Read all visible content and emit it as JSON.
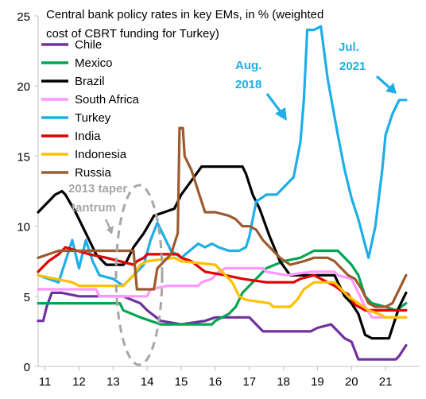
{
  "chart_data": {
    "type": "line",
    "title": "Central bank policy rates in key EMs, in % (weighted cost of CBRT funding for Turkey)",
    "title_lines": [
      "Central bank policy rates in key EMs, in % (weighted",
      "cost of CBRT funding for Turkey)"
    ],
    "x_ticks": [
      "11",
      "12",
      "13",
      "14",
      "15",
      "16",
      "17",
      "18",
      "19",
      "20",
      "21"
    ],
    "y_ticks": [
      "0",
      "5",
      "10",
      "15",
      "20",
      "25"
    ],
    "xlim": [
      2010.8,
      2022.0
    ],
    "ylim": [
      0,
      25
    ],
    "legend_position": "upper-left",
    "series": [
      {
        "name": "Chile",
        "color": "#7030a0",
        "points": [
          [
            2010.8,
            3.25
          ],
          [
            2010.95,
            3.25
          ],
          [
            2011.05,
            4.25
          ],
          [
            2011.2,
            5.25
          ],
          [
            2011.5,
            5.25
          ],
          [
            2012.0,
            5.0
          ],
          [
            2013.0,
            5.0
          ],
          [
            2013.3,
            5.0
          ],
          [
            2013.8,
            4.5
          ],
          [
            2014.0,
            4.0
          ],
          [
            2014.4,
            3.25
          ],
          [
            2015.0,
            3.0
          ],
          [
            2015.7,
            3.25
          ],
          [
            2016.0,
            3.5
          ],
          [
            2017.0,
            3.5
          ],
          [
            2017.2,
            3.0
          ],
          [
            2017.4,
            2.5
          ],
          [
            2018.8,
            2.5
          ],
          [
            2019.0,
            2.75
          ],
          [
            2019.4,
            3.0
          ],
          [
            2019.6,
            2.5
          ],
          [
            2019.8,
            2.0
          ],
          [
            2020.0,
            1.75
          ],
          [
            2020.2,
            0.5
          ],
          [
            2021.3,
            0.5
          ],
          [
            2021.4,
            0.75
          ],
          [
            2021.6,
            1.5
          ]
        ]
      },
      {
        "name": "Mexico",
        "color": "#00a651",
        "points": [
          [
            2010.8,
            4.5
          ],
          [
            2013.2,
            4.5
          ],
          [
            2013.3,
            4.0
          ],
          [
            2013.8,
            3.5
          ],
          [
            2014.4,
            3.0
          ],
          [
            2015.9,
            3.0
          ],
          [
            2016.0,
            3.25
          ],
          [
            2016.4,
            3.75
          ],
          [
            2016.6,
            4.25
          ],
          [
            2016.8,
            5.25
          ],
          [
            2017.0,
            5.75
          ],
          [
            2017.2,
            6.25
          ],
          [
            2017.5,
            7.0
          ],
          [
            2018.0,
            7.5
          ],
          [
            2018.5,
            7.75
          ],
          [
            2018.9,
            8.25
          ],
          [
            2019.6,
            8.25
          ],
          [
            2019.8,
            7.75
          ],
          [
            2020.0,
            7.25
          ],
          [
            2020.2,
            6.5
          ],
          [
            2020.4,
            5.0
          ],
          [
            2020.6,
            4.5
          ],
          [
            2021.0,
            4.25
          ],
          [
            2021.3,
            4.0
          ],
          [
            2021.6,
            4.5
          ]
        ]
      },
      {
        "name": "Brazil",
        "color": "#000000",
        "points": [
          [
            2010.8,
            11.0
          ],
          [
            2010.9,
            11.25
          ],
          [
            2011.1,
            11.75
          ],
          [
            2011.3,
            12.25
          ],
          [
            2011.5,
            12.5
          ],
          [
            2011.6,
            12.25
          ],
          [
            2011.9,
            11.0
          ],
          [
            2012.0,
            10.5
          ],
          [
            2012.3,
            9.0
          ],
          [
            2012.5,
            8.0
          ],
          [
            2012.8,
            7.25
          ],
          [
            2013.3,
            7.25
          ],
          [
            2013.4,
            7.5
          ],
          [
            2013.6,
            8.5
          ],
          [
            2013.9,
            9.5
          ],
          [
            2014.2,
            10.75
          ],
          [
            2014.5,
            11.0
          ],
          [
            2014.8,
            11.25
          ],
          [
            2015.0,
            12.25
          ],
          [
            2015.3,
            13.25
          ],
          [
            2015.6,
            14.25
          ],
          [
            2016.8,
            14.25
          ],
          [
            2016.9,
            13.75
          ],
          [
            2017.1,
            12.25
          ],
          [
            2017.3,
            11.25
          ],
          [
            2017.6,
            9.25
          ],
          [
            2017.9,
            7.5
          ],
          [
            2018.2,
            6.5
          ],
          [
            2019.5,
            6.5
          ],
          [
            2019.8,
            5.0
          ],
          [
            2020.0,
            4.5
          ],
          [
            2020.2,
            3.75
          ],
          [
            2020.4,
            2.25
          ],
          [
            2020.6,
            2.0
          ],
          [
            2021.1,
            2.0
          ],
          [
            2021.2,
            2.75
          ],
          [
            2021.4,
            4.25
          ],
          [
            2021.6,
            5.25
          ]
        ]
      },
      {
        "name": "South Africa",
        "color": "#ff99ff",
        "points": [
          [
            2010.8,
            5.5
          ],
          [
            2012.5,
            5.5
          ],
          [
            2012.6,
            5.0
          ],
          [
            2014.0,
            5.0
          ],
          [
            2014.1,
            5.5
          ],
          [
            2014.6,
            5.75
          ],
          [
            2015.5,
            5.75
          ],
          [
            2015.6,
            6.0
          ],
          [
            2015.9,
            6.25
          ],
          [
            2016.1,
            6.75
          ],
          [
            2016.3,
            7.0
          ],
          [
            2017.4,
            7.0
          ],
          [
            2017.5,
            6.75
          ],
          [
            2018.1,
            6.5
          ],
          [
            2018.8,
            6.75
          ],
          [
            2019.5,
            6.75
          ],
          [
            2019.6,
            6.5
          ],
          [
            2020.0,
            6.25
          ],
          [
            2020.2,
            5.25
          ],
          [
            2020.4,
            4.25
          ],
          [
            2020.6,
            3.5
          ],
          [
            2021.6,
            3.5
          ]
        ]
      },
      {
        "name": "Turkey",
        "color": "#1eaee8",
        "points": [
          [
            2010.8,
            6.5
          ],
          [
            2011.1,
            6.25
          ],
          [
            2011.4,
            6.0
          ],
          [
            2011.6,
            7.5
          ],
          [
            2011.8,
            9.0
          ],
          [
            2012.0,
            7.0
          ],
          [
            2012.2,
            9.0
          ],
          [
            2012.4,
            7.5
          ],
          [
            2012.6,
            6.5
          ],
          [
            2013.0,
            6.25
          ],
          [
            2013.3,
            5.75
          ],
          [
            2013.7,
            6.75
          ],
          [
            2013.9,
            7.25
          ],
          [
            2014.1,
            9.0
          ],
          [
            2014.3,
            10.25
          ],
          [
            2014.5,
            9.25
          ],
          [
            2014.7,
            8.25
          ],
          [
            2015.0,
            7.75
          ],
          [
            2015.5,
            8.75
          ],
          [
            2015.7,
            8.5
          ],
          [
            2015.9,
            8.75
          ],
          [
            2016.1,
            8.5
          ],
          [
            2016.4,
            8.25
          ],
          [
            2016.7,
            8.25
          ],
          [
            2016.9,
            8.5
          ],
          [
            2017.0,
            9.25
          ],
          [
            2017.2,
            11.75
          ],
          [
            2017.5,
            12.25
          ],
          [
            2017.8,
            12.25
          ],
          [
            2018.0,
            12.75
          ],
          [
            2018.3,
            13.5
          ],
          [
            2018.5,
            16.0
          ],
          [
            2018.6,
            19.0
          ],
          [
            2018.7,
            24.0
          ],
          [
            2018.9,
            24.0
          ],
          [
            2019.1,
            24.25
          ],
          [
            2019.3,
            20.5
          ],
          [
            2019.6,
            16.5
          ],
          [
            2019.8,
            14.0
          ],
          [
            2020.0,
            12.0
          ],
          [
            2020.2,
            10.5
          ],
          [
            2020.5,
            7.75
          ],
          [
            2020.7,
            10.0
          ],
          [
            2020.9,
            14.0
          ],
          [
            2021.0,
            16.5
          ],
          [
            2021.2,
            18.0
          ],
          [
            2021.4,
            19.0
          ],
          [
            2021.6,
            19.0
          ]
        ]
      },
      {
        "name": "India",
        "color": "#e00000",
        "points": [
          [
            2010.8,
            6.75
          ],
          [
            2011.1,
            7.5
          ],
          [
            2011.4,
            8.0
          ],
          [
            2011.6,
            8.5
          ],
          [
            2012.3,
            8.0
          ],
          [
            2012.8,
            7.75
          ],
          [
            2013.2,
            7.5
          ],
          [
            2013.6,
            7.25
          ],
          [
            2013.7,
            7.5
          ],
          [
            2013.9,
            7.75
          ],
          [
            2014.0,
            8.0
          ],
          [
            2014.9,
            8.0
          ],
          [
            2015.0,
            7.75
          ],
          [
            2015.3,
            7.5
          ],
          [
            2015.7,
            6.75
          ],
          [
            2016.3,
            6.5
          ],
          [
            2016.8,
            6.25
          ],
          [
            2017.5,
            6.0
          ],
          [
            2018.3,
            6.0
          ],
          [
            2018.5,
            6.25
          ],
          [
            2018.9,
            6.5
          ],
          [
            2019.1,
            6.25
          ],
          [
            2019.3,
            6.0
          ],
          [
            2019.5,
            5.75
          ],
          [
            2019.7,
            5.4
          ],
          [
            2019.9,
            5.15
          ],
          [
            2020.1,
            4.4
          ],
          [
            2020.4,
            4.0
          ],
          [
            2021.6,
            4.0
          ]
        ]
      },
      {
        "name": "Indonesia",
        "color": "#ffc000",
        "points": [
          [
            2010.8,
            6.5
          ],
          [
            2011.8,
            6.0
          ],
          [
            2012.0,
            5.75
          ],
          [
            2013.3,
            5.75
          ],
          [
            2013.4,
            6.0
          ],
          [
            2013.6,
            6.5
          ],
          [
            2013.8,
            7.25
          ],
          [
            2014.0,
            7.5
          ],
          [
            2014.8,
            7.75
          ],
          [
            2015.0,
            7.5
          ],
          [
            2016.0,
            7.25
          ],
          [
            2016.2,
            6.75
          ],
          [
            2016.5,
            6.0
          ],
          [
            2016.7,
            5.0
          ],
          [
            2016.9,
            4.75
          ],
          [
            2017.6,
            4.5
          ],
          [
            2017.7,
            4.25
          ],
          [
            2018.2,
            4.25
          ],
          [
            2018.4,
            4.75
          ],
          [
            2018.6,
            5.5
          ],
          [
            2018.9,
            6.0
          ],
          [
            2019.5,
            6.0
          ],
          [
            2019.7,
            5.5
          ],
          [
            2019.9,
            5.0
          ],
          [
            2020.2,
            4.5
          ],
          [
            2020.5,
            4.0
          ],
          [
            2020.8,
            3.75
          ],
          [
            2021.0,
            3.5
          ],
          [
            2021.6,
            3.5
          ]
        ]
      },
      {
        "name": "Russia",
        "color": "#9c5a2e",
        "points": [
          [
            2010.8,
            7.75
          ],
          [
            2011.1,
            8.0
          ],
          [
            2011.4,
            8.25
          ],
          [
            2012.5,
            8.25
          ],
          [
            2013.6,
            8.25
          ],
          [
            2013.7,
            5.5
          ],
          [
            2014.2,
            5.5
          ],
          [
            2014.3,
            7.0
          ],
          [
            2014.5,
            7.5
          ],
          [
            2014.7,
            8.0
          ],
          [
            2014.9,
            9.5
          ],
          [
            2014.95,
            17.0
          ],
          [
            2015.05,
            17.0
          ],
          [
            2015.1,
            15.0
          ],
          [
            2015.3,
            14.0
          ],
          [
            2015.5,
            12.5
          ],
          [
            2015.7,
            11.0
          ],
          [
            2016.0,
            11.0
          ],
          [
            2016.4,
            10.75
          ],
          [
            2016.6,
            10.5
          ],
          [
            2016.8,
            10.0
          ],
          [
            2017.0,
            10.0
          ],
          [
            2017.2,
            9.75
          ],
          [
            2017.4,
            9.0
          ],
          [
            2017.6,
            8.5
          ],
          [
            2017.9,
            7.75
          ],
          [
            2018.2,
            7.25
          ],
          [
            2018.6,
            7.5
          ],
          [
            2018.9,
            7.75
          ],
          [
            2019.3,
            7.75
          ],
          [
            2019.5,
            7.5
          ],
          [
            2019.7,
            7.0
          ],
          [
            2019.9,
            6.5
          ],
          [
            2020.1,
            6.25
          ],
          [
            2020.3,
            5.5
          ],
          [
            2020.5,
            4.5
          ],
          [
            2020.7,
            4.25
          ],
          [
            2021.0,
            4.25
          ],
          [
            2021.2,
            4.5
          ],
          [
            2021.4,
            5.5
          ],
          [
            2021.6,
            6.5
          ]
        ]
      }
    ],
    "annotations": [
      {
        "text_lines": [
          "2013 taper",
          "tantrum"
        ],
        "color": "#a6a6a6"
      },
      {
        "text_lines": [
          "Aug.",
          "2018"
        ],
        "color": "#1eaee8"
      },
      {
        "text_lines": [
          "Jul.",
          "2021"
        ],
        "color": "#1eaee8"
      }
    ]
  }
}
